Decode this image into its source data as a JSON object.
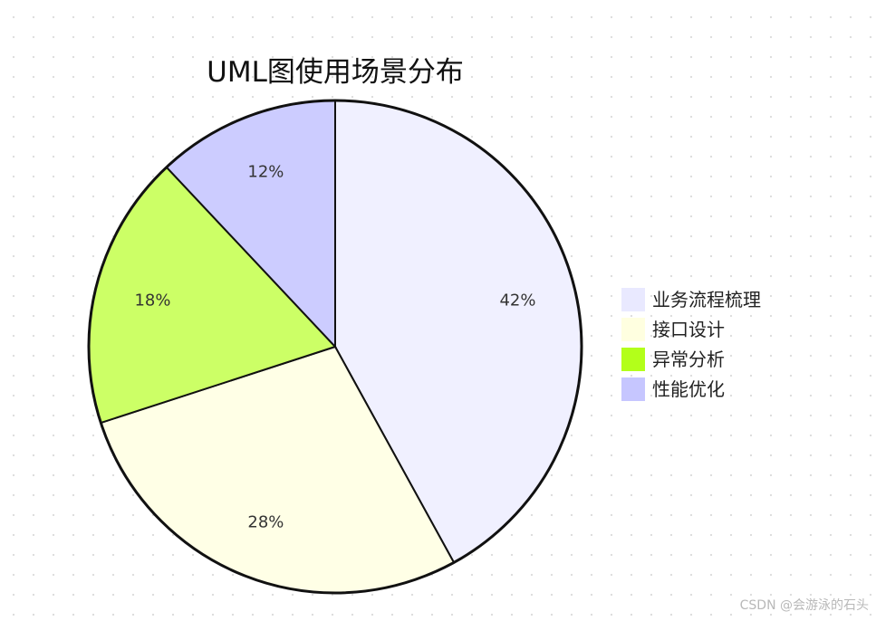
{
  "chart_data": {
    "type": "pie",
    "title": "UML图使用场景分布",
    "categories": [
      "业务流程梳理",
      "接口设计",
      "异常分析",
      "性能优化"
    ],
    "values": [
      42,
      28,
      18,
      12
    ],
    "labels": [
      "42%",
      "28%",
      "18%",
      "12%"
    ],
    "colors": [
      "#f0f0ff",
      "#ffffe6",
      "#ccff66",
      "#ccccff"
    ],
    "legend_colors": [
      "#e9e9ff",
      "#ffffe0",
      "#b3ff1a",
      "#c6c6ff"
    ],
    "start": "top",
    "direction": "clockwise",
    "legend_position": "right",
    "outline_color": "#111111"
  },
  "watermark": "CSDN @会游泳的石头"
}
